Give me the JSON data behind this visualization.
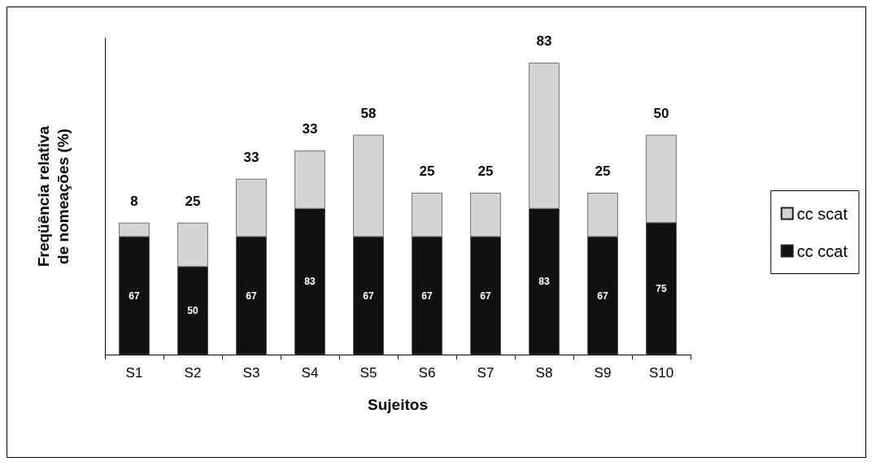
{
  "chart_data": {
    "type": "bar",
    "stacked": true,
    "xlabel": "Sujeitos",
    "ylabel": "Freqüência relativa de nomeações (%)",
    "categories": [
      "S1",
      "S2",
      "S3",
      "S4",
      "S5",
      "S6",
      "S7",
      "S8",
      "S9",
      "S10"
    ],
    "series": [
      {
        "name": "cc ccat",
        "color": "#111111",
        "values": [
          67,
          50,
          67,
          83,
          67,
          67,
          67,
          83,
          67,
          75
        ]
      },
      {
        "name": "cc scat",
        "color": "#d4d4d4",
        "values": [
          8,
          25,
          33,
          33,
          58,
          25,
          25,
          83,
          25,
          50
        ]
      }
    ],
    "data_labels": true,
    "legend": "right",
    "grid": false
  }
}
